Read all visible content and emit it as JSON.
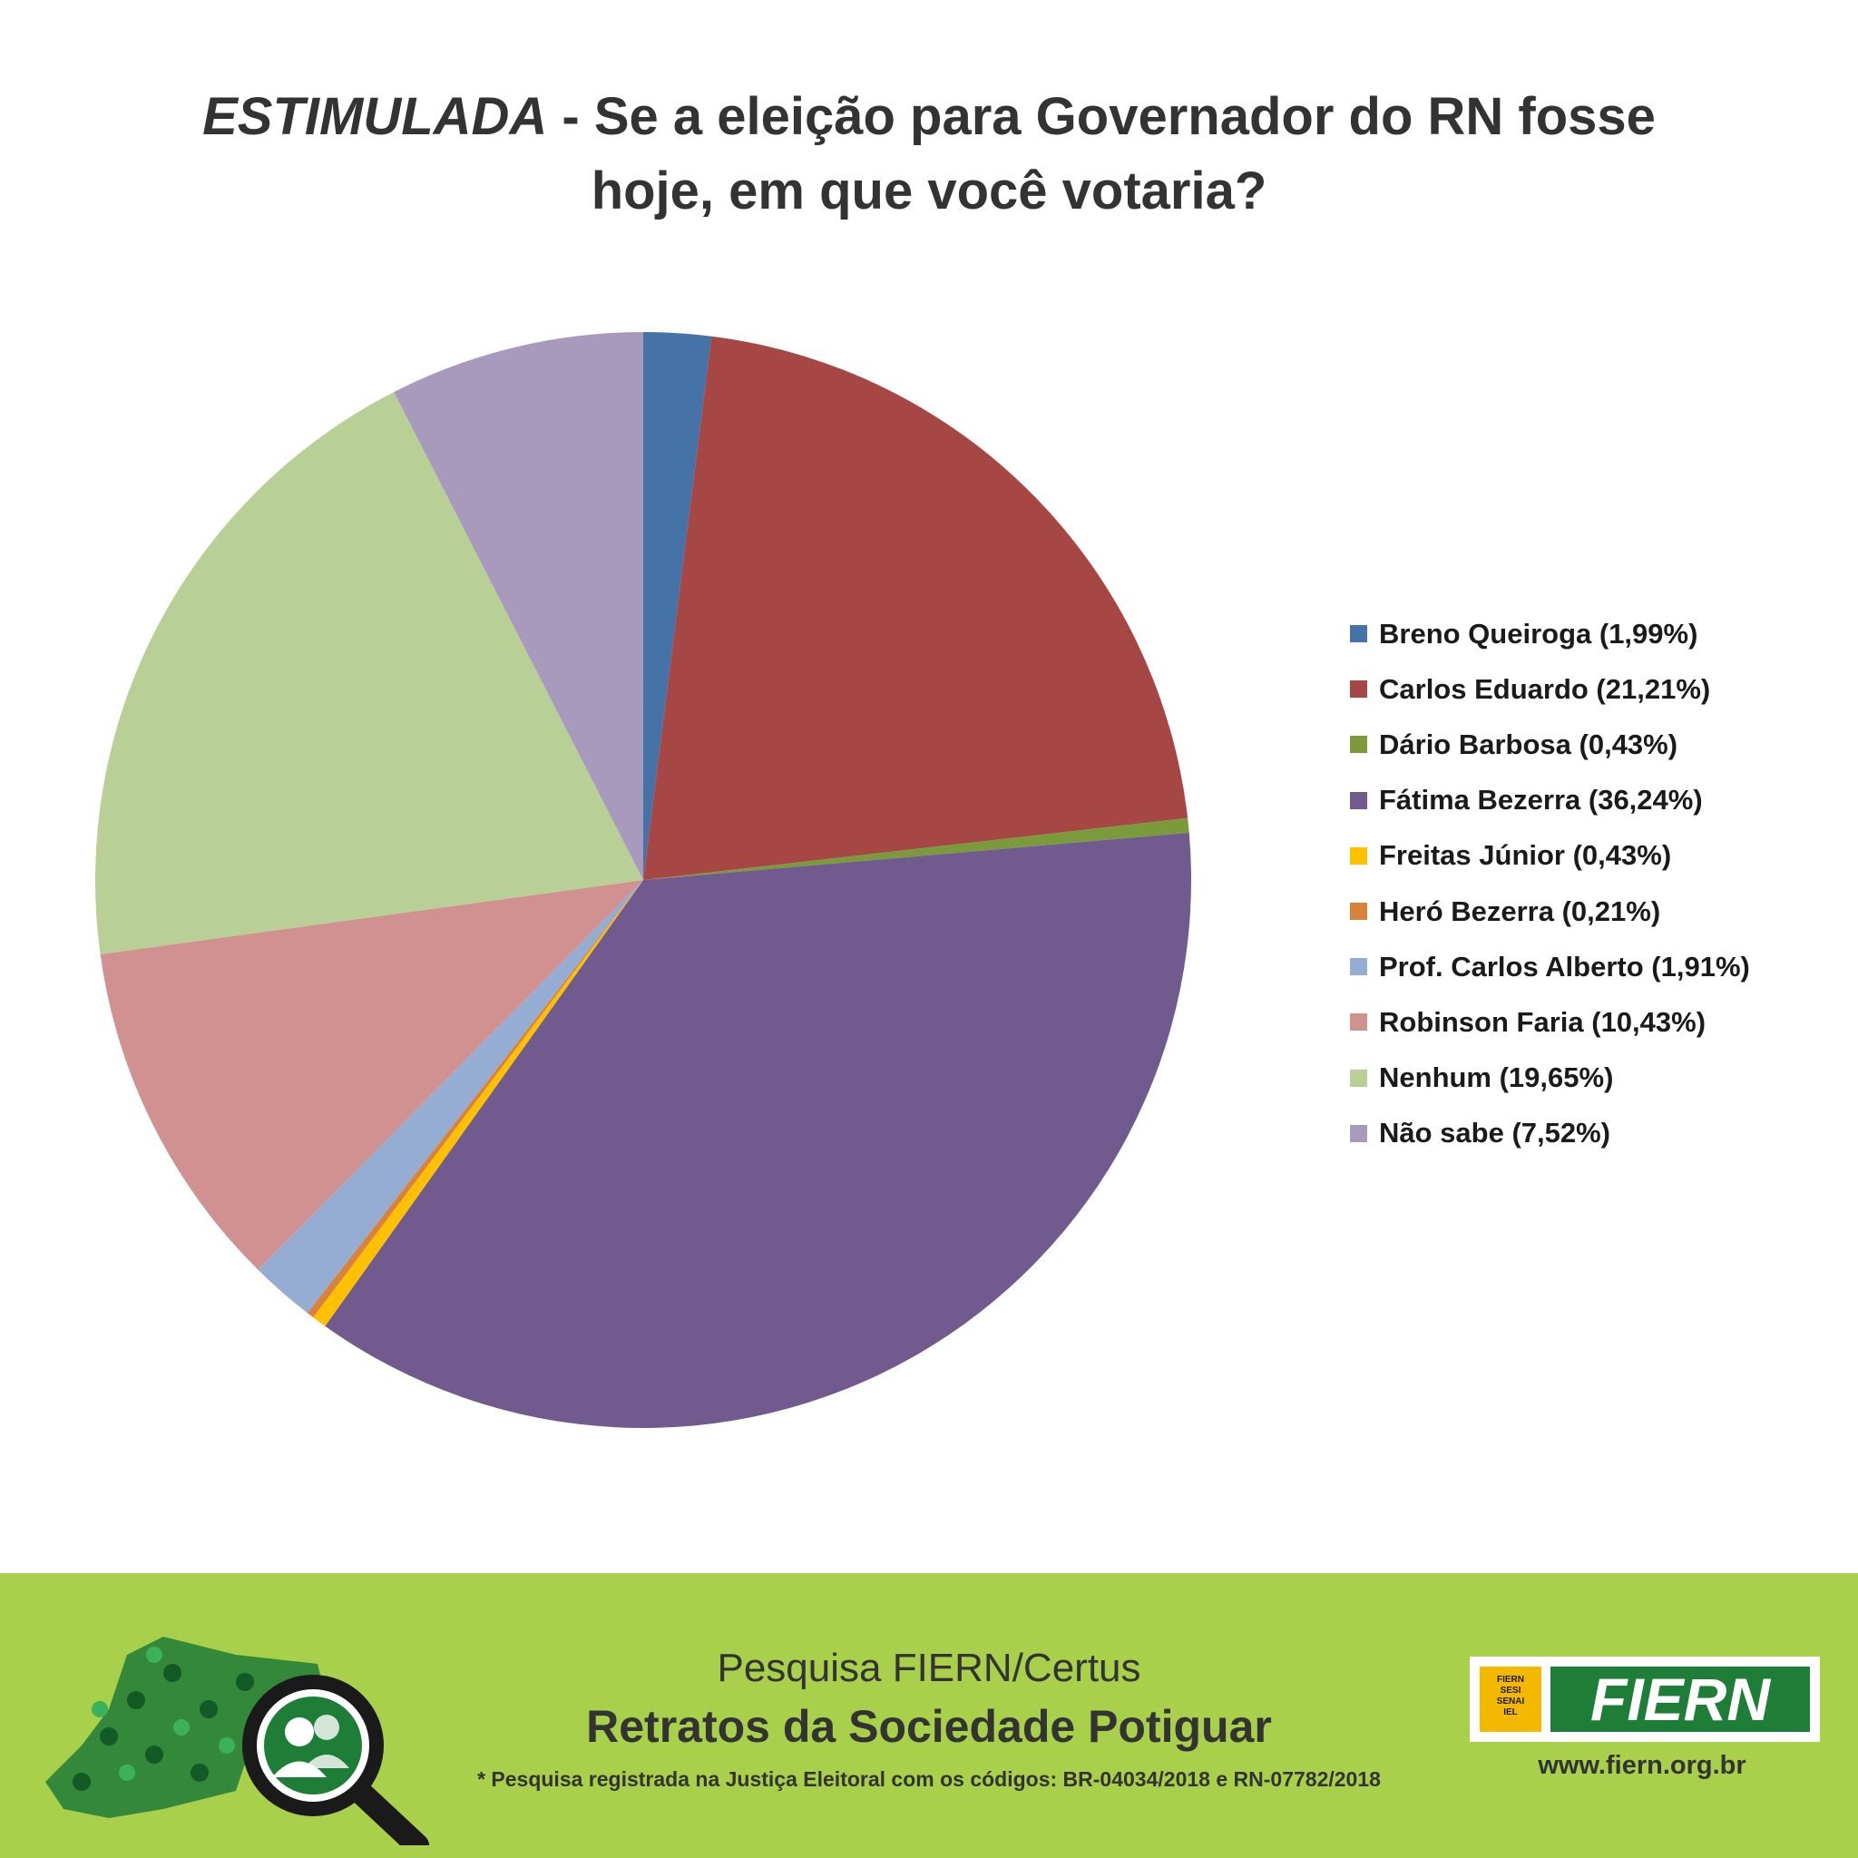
{
  "title": {
    "emphasis": "ESTIMULADA",
    "rest_line1": " - Se a eleição para Governador do RN fosse",
    "line2": "hoje, em que você votaria?"
  },
  "chart_data": {
    "type": "pie",
    "title": "ESTIMULADA - Se a eleição para Governador do RN fosse hoje, em que você votaria?",
    "start": "12 o'clock, clockwise",
    "legend_position": "right",
    "slices": [
      {
        "label": "Breno Queiroga (1,99%)",
        "value": 1.99,
        "color": "#4572a7"
      },
      {
        "label": "Carlos Eduardo (21,21%)",
        "value": 21.21,
        "color": "#a74745"
      },
      {
        "label": "Dário Barbosa (0,43%)",
        "value": 0.43,
        "color": "#7a9a3c"
      },
      {
        "label": "Fátima Bezerra (36,24%)",
        "value": 36.24,
        "color": "#705a8e"
      },
      {
        "label": "Freitas Júnior (0,43%)",
        "value": 0.43,
        "color": "#ffc000"
      },
      {
        "label": "Heró Bezerra (0,21%)",
        "value": 0.21,
        "color": "#d9823b"
      },
      {
        "label": "Prof. Carlos Alberto (1,91%)",
        "value": 1.91,
        "color": "#95acd3"
      },
      {
        "label": "Robinson Faria (10,43%)",
        "value": 10.43,
        "color": "#d09190"
      },
      {
        "label": "Nenhum (19,65%)",
        "value": 19.65,
        "color": "#b8cf96"
      },
      {
        "label": "Não sabe (7,52%)",
        "value": 7.52,
        "color": "#a89abd"
      }
    ]
  },
  "footer": {
    "survey": "Pesquisa FIERN/Certus",
    "series": "Retratos da Sociedade Potiguar",
    "note": "* Pesquisa registrada na Justiça Eleitoral com os códigos: BR-04034/2018 e RN-07782/2018",
    "logo_box_lines": [
      "FIERN",
      "SESI",
      "SENAI",
      "IEL"
    ],
    "logo_word": "FIERN",
    "url": "www.fiern.org.br",
    "brand_color": "#1e7d36",
    "footer_color": "#a8d04a"
  }
}
